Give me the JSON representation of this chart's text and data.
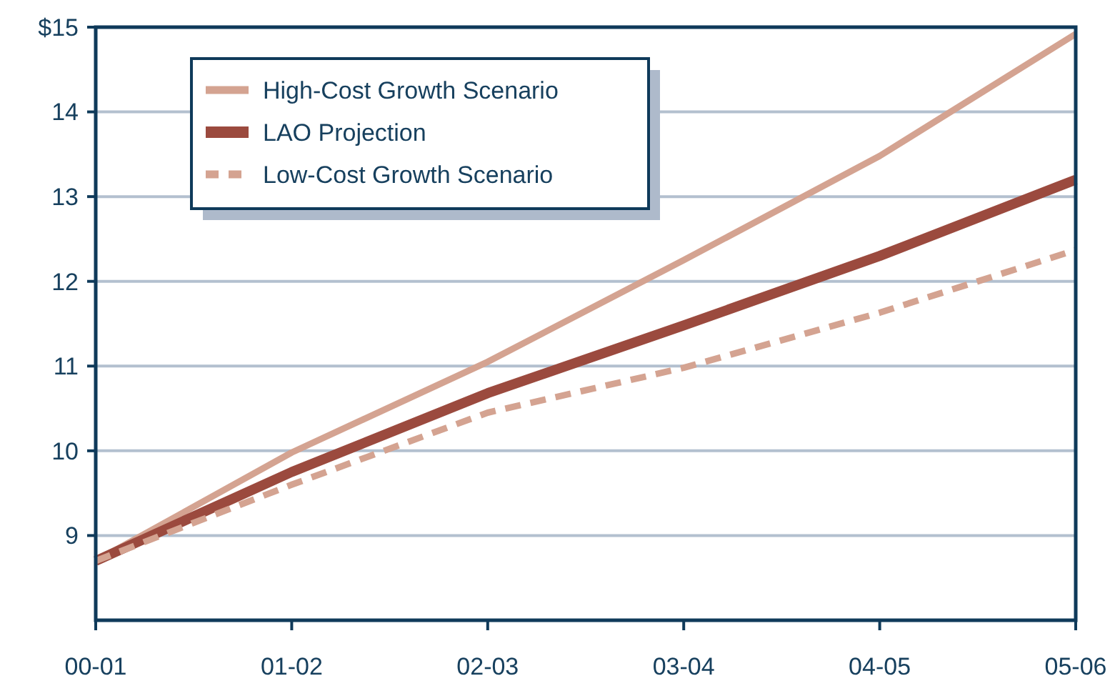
{
  "chart_data": {
    "type": "line",
    "categories": [
      "00-01",
      "01-02",
      "02-03",
      "03-04",
      "04-05",
      "05-06"
    ],
    "series": [
      {
        "name": "High-Cost Growth Scenario",
        "color": "#d4a391",
        "values": [
          8.7,
          9.98,
          11.05,
          12.25,
          13.48,
          14.92
        ]
      },
      {
        "name": "LAO Projection",
        "color": "#9b4a3e",
        "values": [
          8.7,
          9.75,
          10.68,
          11.48,
          12.3,
          13.2
        ]
      },
      {
        "name": "Low-Cost Growth Scenario",
        "color": "#d4a391",
        "line_style": "dashed",
        "values": [
          8.7,
          9.6,
          10.45,
          10.98,
          11.63,
          12.37
        ]
      }
    ],
    "ylim": [
      8,
      15
    ],
    "yticks": [
      9,
      10,
      11,
      12,
      13,
      14,
      {
        "value": 15,
        "label": "$15"
      }
    ],
    "grid": "y",
    "legend": "top left",
    "marker": "none",
    "line_style": "solid"
  }
}
